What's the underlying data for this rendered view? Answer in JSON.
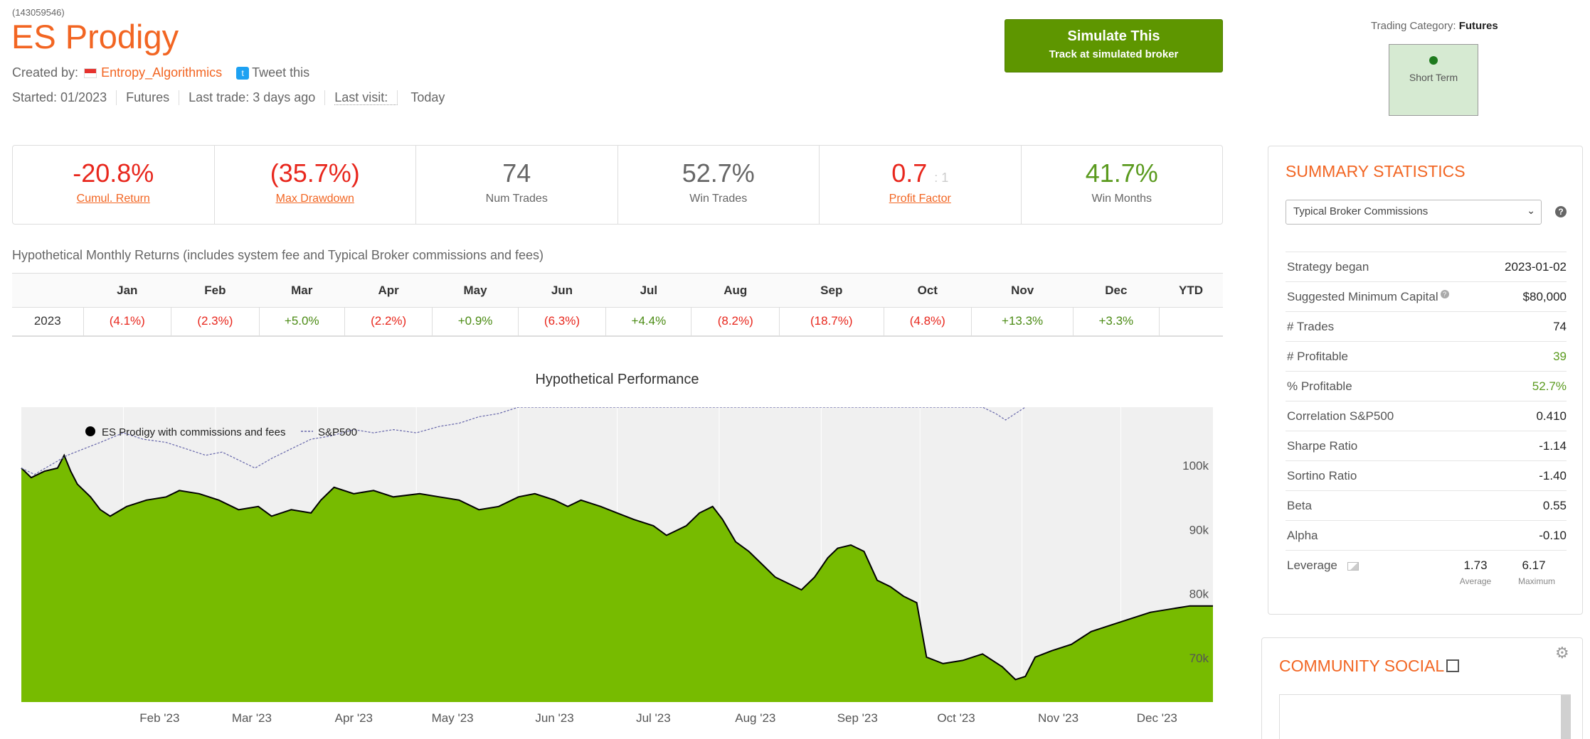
{
  "header": {
    "system_id": "(143059546)",
    "title": "ES Prodigy",
    "created_by_label": "Created by:",
    "author": "Entropy_Algorithmics",
    "tweet_label": "Tweet this",
    "started": "Started: 01/2023",
    "market": "Futures",
    "last_trade": "Last trade: 3 days ago",
    "last_visit_label": "Last visit:",
    "last_visit_value": "Today"
  },
  "simulate": {
    "title": "Simulate This",
    "subtitle": "Track at simulated broker"
  },
  "trading_category": {
    "label": "Trading Category:",
    "value": "Futures",
    "term": "Short Term"
  },
  "stats": [
    {
      "value": "-20.8%",
      "label": "Cumul. Return",
      "color": "#e8271d",
      "link": true
    },
    {
      "value": "(35.7%)",
      "label": "Max Drawdown",
      "color": "#e8271d",
      "link": true
    },
    {
      "value": "74",
      "label": "Num Trades",
      "color": "#666666",
      "link": false
    },
    {
      "value": "52.7%",
      "label": "Win Trades",
      "color": "#666666",
      "link": false
    },
    {
      "value": "0.7",
      "suffix": ": 1",
      "label": "Profit Factor",
      "color": "#e8271d",
      "link": true
    },
    {
      "value": "41.7%",
      "label": "Win Months",
      "color": "#5a9a1e",
      "link": false
    }
  ],
  "monthly": {
    "title": "Hypothetical Monthly Returns (includes system fee and Typical Broker commissions and fees)",
    "headers": [
      "",
      "Jan",
      "Feb",
      "Mar",
      "Apr",
      "May",
      "Jun",
      "Jul",
      "Aug",
      "Sep",
      "Oct",
      "Nov",
      "Dec",
      "YTD"
    ],
    "rows": [
      {
        "year": "2023",
        "values": [
          "(4.1%)",
          "(2.3%)",
          "+5.0%",
          "(2.2%)",
          "+0.9%",
          "(6.3%)",
          "+4.4%",
          "(8.2%)",
          "(18.7%)",
          "(4.8%)",
          "+13.3%",
          "+3.3%",
          ""
        ]
      }
    ]
  },
  "chart_data": {
    "type": "area",
    "title": "Hypothetical Performance",
    "legend": [
      "ES Prodigy with commissions and fees",
      "S&P500"
    ],
    "legend_position": "top-left",
    "x_labels": [
      "Feb '23",
      "Mar '23",
      "Apr '23",
      "May '23",
      "Jun '23",
      "Jul '23",
      "Aug '23",
      "Sep '23",
      "Oct '23",
      "Nov '23",
      "Dec '23"
    ],
    "y_labels": [
      "100k",
      "90k",
      "80k",
      "70k"
    ],
    "y_ticks": [
      100000,
      90000,
      80000,
      70000
    ],
    "ylim": [
      63000,
      109000
    ],
    "x_start": "2023-01-01",
    "x_end": "2023-12-29",
    "series": [
      {
        "name": "ES Prodigy with commissions and fees",
        "color": "#77bb00",
        "points": [
          [
            "2023-01-01",
            99500
          ],
          [
            "2023-01-04",
            98000
          ],
          [
            "2023-01-08",
            99000
          ],
          [
            "2023-01-12",
            99500
          ],
          [
            "2023-01-14",
            101500
          ],
          [
            "2023-01-16",
            99000
          ],
          [
            "2023-01-18",
            97000
          ],
          [
            "2023-01-22",
            95000
          ],
          [
            "2023-01-25",
            93000
          ],
          [
            "2023-01-28",
            92000
          ],
          [
            "2023-02-02",
            93500
          ],
          [
            "2023-02-08",
            94500
          ],
          [
            "2023-02-14",
            95000
          ],
          [
            "2023-02-18",
            96000
          ],
          [
            "2023-02-24",
            95500
          ],
          [
            "2023-03-02",
            94500
          ],
          [
            "2023-03-08",
            93000
          ],
          [
            "2023-03-14",
            93500
          ],
          [
            "2023-03-18",
            92000
          ],
          [
            "2023-03-24",
            93000
          ],
          [
            "2023-03-30",
            92500
          ],
          [
            "2023-04-02",
            94500
          ],
          [
            "2023-04-06",
            96500
          ],
          [
            "2023-04-12",
            95500
          ],
          [
            "2023-04-18",
            96000
          ],
          [
            "2023-04-24",
            95000
          ],
          [
            "2023-05-02",
            95500
          ],
          [
            "2023-05-08",
            95000
          ],
          [
            "2023-05-14",
            94500
          ],
          [
            "2023-05-20",
            93000
          ],
          [
            "2023-05-26",
            93500
          ],
          [
            "2023-06-01",
            95000
          ],
          [
            "2023-06-06",
            95500
          ],
          [
            "2023-06-12",
            94500
          ],
          [
            "2023-06-16",
            93500
          ],
          [
            "2023-06-20",
            94500
          ],
          [
            "2023-06-26",
            93500
          ],
          [
            "2023-07-01",
            92500
          ],
          [
            "2023-07-06",
            91500
          ],
          [
            "2023-07-12",
            90500
          ],
          [
            "2023-07-16",
            89000
          ],
          [
            "2023-07-22",
            90500
          ],
          [
            "2023-07-26",
            92500
          ],
          [
            "2023-07-30",
            93500
          ],
          [
            "2023-08-02",
            91500
          ],
          [
            "2023-08-06",
            88000
          ],
          [
            "2023-08-10",
            86500
          ],
          [
            "2023-08-14",
            84500
          ],
          [
            "2023-08-18",
            82500
          ],
          [
            "2023-08-22",
            81500
          ],
          [
            "2023-08-26",
            80500
          ],
          [
            "2023-08-30",
            82500
          ],
          [
            "2023-09-03",
            85500
          ],
          [
            "2023-09-06",
            87000
          ],
          [
            "2023-09-10",
            87500
          ],
          [
            "2023-09-14",
            86500
          ],
          [
            "2023-09-18",
            82000
          ],
          [
            "2023-09-22",
            81000
          ],
          [
            "2023-09-26",
            79500
          ],
          [
            "2023-09-30",
            78500
          ],
          [
            "2023-10-03",
            70000
          ],
          [
            "2023-10-08",
            69000
          ],
          [
            "2023-10-14",
            69500
          ],
          [
            "2023-10-20",
            70500
          ],
          [
            "2023-10-26",
            68500
          ],
          [
            "2023-10-30",
            66500
          ],
          [
            "2023-11-02",
            67000
          ],
          [
            "2023-11-05",
            70000
          ],
          [
            "2023-11-10",
            71000
          ],
          [
            "2023-11-16",
            72000
          ],
          [
            "2023-11-22",
            74000
          ],
          [
            "2023-11-28",
            75000
          ],
          [
            "2023-12-04",
            76000
          ],
          [
            "2023-12-10",
            77000
          ],
          [
            "2023-12-16",
            77500
          ],
          [
            "2023-12-22",
            78000
          ],
          [
            "2023-12-29",
            78000
          ]
        ]
      },
      {
        "name": "S&P500",
        "color": "#6666aa",
        "points": [
          [
            "2023-01-01",
            99500
          ],
          [
            "2023-01-05",
            98500
          ],
          [
            "2023-01-10",
            100000
          ],
          [
            "2023-01-15",
            101500
          ],
          [
            "2023-01-20",
            102500
          ],
          [
            "2023-01-25",
            103500
          ],
          [
            "2023-02-01",
            105000
          ],
          [
            "2023-02-07",
            104000
          ],
          [
            "2023-02-14",
            103500
          ],
          [
            "2023-02-20",
            102500
          ],
          [
            "2023-02-26",
            101500
          ],
          [
            "2023-03-03",
            102000
          ],
          [
            "2023-03-09",
            100500
          ],
          [
            "2023-03-13",
            99500
          ],
          [
            "2023-03-18",
            101000
          ],
          [
            "2023-03-24",
            102500
          ],
          [
            "2023-03-30",
            104000
          ],
          [
            "2023-04-05",
            104500
          ],
          [
            "2023-04-12",
            105500
          ],
          [
            "2023-04-18",
            105000
          ],
          [
            "2023-04-24",
            105500
          ],
          [
            "2023-05-01",
            105000
          ],
          [
            "2023-05-08",
            106000
          ],
          [
            "2023-05-14",
            106500
          ],
          [
            "2023-05-20",
            107500
          ],
          [
            "2023-05-26",
            108000
          ],
          [
            "2023-06-01",
            109000
          ],
          [
            "2023-10-20",
            109000
          ],
          [
            "2023-10-24",
            108000
          ],
          [
            "2023-10-27",
            107000
          ],
          [
            "2023-10-30",
            108000
          ],
          [
            "2023-11-02",
            109000
          ]
        ]
      }
    ]
  },
  "summary": {
    "title": "SUMMARY STATISTICS",
    "select_value": "Typical Broker Commissions",
    "rows": [
      {
        "key": "Strategy began",
        "value": "2023-01-02",
        "green": false
      },
      {
        "key": "Suggested Minimum Capital",
        "value": "$80,000",
        "green": false,
        "help": true
      },
      {
        "key": "# Trades",
        "value": "74",
        "green": false
      },
      {
        "key": "# Profitable",
        "value": "39",
        "green": true
      },
      {
        "key": "% Profitable",
        "value": "52.7%",
        "green": true
      },
      {
        "key": "Correlation S&P500",
        "value": "0.410",
        "green": false
      },
      {
        "key": "Sharpe Ratio",
        "value": "-1.14",
        "green": false
      },
      {
        "key": "Sortino Ratio",
        "value": "-1.40",
        "green": false
      },
      {
        "key": "Beta",
        "value": "0.55",
        "green": false
      },
      {
        "key": "Alpha",
        "value": "-0.10",
        "green": false
      }
    ],
    "leverage": {
      "key": "Leverage",
      "average": "1.73",
      "average_label": "Average",
      "maximum": "6.17",
      "maximum_label": "Maximum"
    }
  },
  "community": {
    "title": "COMMUNITY SOCIAL"
  },
  "colors": {
    "accent": "#f26522",
    "positive": "#5a9a1e",
    "negative": "#e8271d",
    "button": "#5e9600"
  }
}
